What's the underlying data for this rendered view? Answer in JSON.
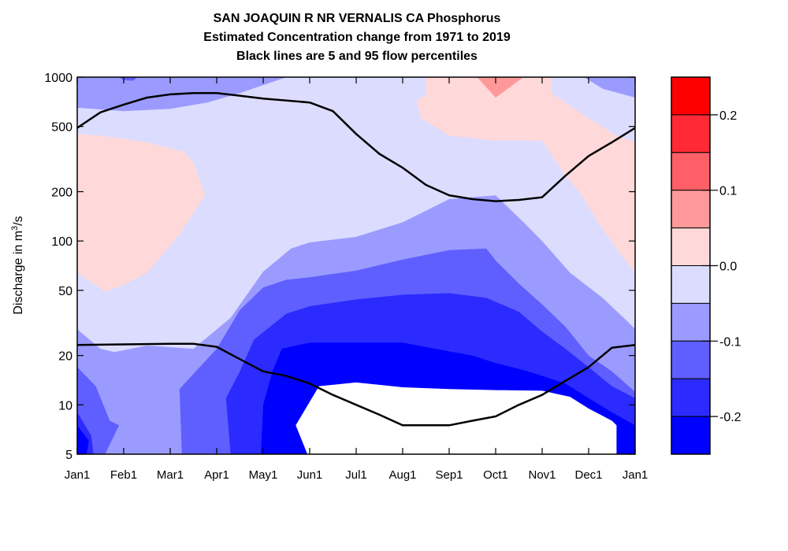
{
  "chart_data": {
    "type": "heatmap",
    "title_lines": [
      "SAN JOAQUIN R NR VERNALIS CA  Phosphorus",
      "Estimated Concentration change from 1971 to 2019",
      "Black lines are 5 and 95 flow percentiles"
    ],
    "ylabel": {
      "pre": "Discharge in m",
      "sup": "3",
      "post": "/s"
    },
    "yscale": "log",
    "ylim": [
      5,
      1000
    ],
    "ytick_values": [
      5,
      10,
      20,
      50,
      100,
      200,
      500,
      1000
    ],
    "yticks": [
      "5",
      "10",
      "20",
      "50",
      "100",
      "200",
      "500",
      "1000"
    ],
    "xtick_values": [
      0,
      1,
      2,
      3,
      4,
      5,
      6,
      7,
      8,
      9,
      10,
      11,
      12
    ],
    "xticks": [
      "Jan1",
      "Feb1",
      "Mar1",
      "Apr1",
      "May1",
      "Jun1",
      "Jul1",
      "Aug1",
      "Sep1",
      "Oct1",
      "Nov1",
      "Dec1",
      "Jan1"
    ],
    "xlim": [
      0,
      12
    ],
    "colorbar": {
      "range": [
        -0.25,
        0.25
      ],
      "tick_values": [
        0.2,
        0.1,
        0.0,
        -0.1,
        -0.2
      ],
      "tick_labels": [
        "0.2",
        "0.1",
        "0.0",
        "-0.1",
        "-0.2"
      ],
      "bands": [
        {
          "from": 0.2,
          "to": 0.25,
          "color": "#ff0000"
        },
        {
          "from": 0.15,
          "to": 0.2,
          "color": "#ff2a35"
        },
        {
          "from": 0.1,
          "to": 0.15,
          "color": "#ff5f66"
        },
        {
          "from": 0.05,
          "to": 0.1,
          "color": "#ff9999"
        },
        {
          "from": 0.0,
          "to": 0.05,
          "color": "#ffd9d9"
        },
        {
          "from": -0.05,
          "to": 0.0,
          "color": "#dcdcff"
        },
        {
          "from": -0.1,
          "to": -0.05,
          "color": "#9b9bff"
        },
        {
          "from": -0.15,
          "to": -0.1,
          "color": "#5f5fff"
        },
        {
          "from": -0.2,
          "to": -0.15,
          "color": "#2b2bff"
        },
        {
          "from": -0.25,
          "to": -0.2,
          "color": "#0000ff"
        }
      ]
    },
    "contour_regions": [
      {
        "level": -0.025,
        "color": "#dcdcff",
        "points": [
          [
            0,
            5
          ],
          [
            12,
            5
          ],
          [
            12,
            1000
          ],
          [
            0,
            1000
          ]
        ]
      },
      {
        "level": 0.025,
        "color": "#ffd9d9",
        "points": [
          [
            0,
            64
          ],
          [
            0.3,
            56
          ],
          [
            0.6,
            49
          ],
          [
            1,
            54
          ],
          [
            1.5,
            64
          ],
          [
            2.2,
            110
          ],
          [
            2.75,
            190
          ],
          [
            2.5,
            300
          ],
          [
            2.3,
            350
          ],
          [
            1.5,
            400
          ],
          [
            1,
            420
          ],
          [
            0.5,
            440
          ],
          [
            0,
            450
          ]
        ]
      },
      {
        "level": 0.025,
        "color": "#ffd9d9",
        "points": [
          [
            7.5,
            1000
          ],
          [
            7.5,
            780
          ],
          [
            7.3,
            720
          ],
          [
            7.4,
            560
          ],
          [
            8,
            440
          ],
          [
            9,
            410
          ],
          [
            10,
            410
          ],
          [
            10.5,
            250
          ],
          [
            10.8,
            200
          ],
          [
            11.2,
            130
          ],
          [
            11.6,
            90
          ],
          [
            12,
            64
          ],
          [
            12,
            400
          ],
          [
            11.6,
            440
          ],
          [
            11,
            560
          ],
          [
            10.5,
            700
          ],
          [
            10.2,
            800
          ],
          [
            10.2,
            1000
          ]
        ]
      },
      {
        "level": 0.075,
        "color": "#ff9999",
        "points": [
          [
            8.6,
            1000
          ],
          [
            9,
            750
          ],
          [
            9.6,
            1000
          ]
        ]
      },
      {
        "level": -0.075,
        "color": "#9b9bff",
        "points": [
          [
            0,
            29
          ],
          [
            0.5,
            22
          ],
          [
            0.8,
            21
          ],
          [
            1.5,
            23
          ],
          [
            2.5,
            22
          ],
          [
            3.3,
            34
          ],
          [
            4,
            65
          ],
          [
            4.6,
            90
          ],
          [
            5,
            98
          ],
          [
            6,
            106
          ],
          [
            7,
            130
          ],
          [
            8,
            180
          ],
          [
            9,
            190
          ],
          [
            9.6,
            130
          ],
          [
            10,
            100
          ],
          [
            10.6,
            64
          ],
          [
            11.3,
            45
          ],
          [
            11.8,
            33
          ],
          [
            12,
            29
          ],
          [
            12,
            5
          ],
          [
            0,
            5
          ]
        ]
      },
      {
        "level": -0.075,
        "color": "#9b9bff",
        "points": [
          [
            0,
            1000
          ],
          [
            0,
            650
          ],
          [
            1,
            620
          ],
          [
            2,
            640
          ],
          [
            2.8,
            700
          ],
          [
            3.5,
            800
          ],
          [
            4.5,
            1000
          ]
        ]
      },
      {
        "level": -0.075,
        "color": "#9b9bff",
        "points": [
          [
            10.9,
            1000
          ],
          [
            11.3,
            850
          ],
          [
            12,
            750
          ],
          [
            12,
            1000
          ]
        ]
      },
      {
        "level": -0.125,
        "color": "#5f5fff",
        "points": [
          [
            2.25,
            5
          ],
          [
            2.2,
            12.5
          ],
          [
            3,
            22
          ],
          [
            3.5,
            38
          ],
          [
            4,
            52
          ],
          [
            4.5,
            58
          ],
          [
            5,
            60
          ],
          [
            6,
            66
          ],
          [
            7,
            77
          ],
          [
            8,
            88
          ],
          [
            8.8,
            90
          ],
          [
            9,
            76
          ],
          [
            9.5,
            55
          ],
          [
            10,
            41
          ],
          [
            10.5,
            30
          ],
          [
            11,
            20
          ],
          [
            11.5,
            16
          ],
          [
            12,
            12
          ],
          [
            12,
            5
          ]
        ]
      },
      {
        "level": -0.125,
        "color": "#5f5fff",
        "points": [
          [
            0,
            17
          ],
          [
            0.4,
            13
          ],
          [
            0.7,
            8
          ],
          [
            0.9,
            7.5
          ],
          [
            0.6,
            5
          ],
          [
            0,
            5
          ]
        ]
      },
      {
        "level": -0.125,
        "color": "#5f5fff",
        "points": [
          [
            0.9,
            1000
          ],
          [
            1,
            960
          ],
          [
            1.2,
            950
          ],
          [
            1.3,
            1000
          ]
        ]
      },
      {
        "level": -0.175,
        "color": "#2b2bff",
        "points": [
          [
            3.3,
            5
          ],
          [
            3.2,
            11
          ],
          [
            3.5,
            16
          ],
          [
            3.8,
            25
          ],
          [
            4.5,
            36
          ],
          [
            5,
            40
          ],
          [
            6,
            44
          ],
          [
            7,
            47
          ],
          [
            8,
            48
          ],
          [
            8.8,
            45
          ],
          [
            9.5,
            37
          ],
          [
            10,
            28
          ],
          [
            10.5,
            22
          ],
          [
            11,
            17
          ],
          [
            11.5,
            13
          ],
          [
            12,
            11
          ],
          [
            12,
            5
          ]
        ]
      },
      {
        "level": -0.175,
        "color": "#2b2bff",
        "points": [
          [
            0,
            9
          ],
          [
            0.3,
            6.5
          ],
          [
            0.35,
            5
          ],
          [
            0,
            5
          ]
        ]
      },
      {
        "level": -0.225,
        "color": "#0000ff",
        "points": [
          [
            3.95,
            5
          ],
          [
            4,
            10
          ],
          [
            4.2,
            16
          ],
          [
            4.4,
            22
          ],
          [
            5,
            24
          ],
          [
            6,
            24
          ],
          [
            7,
            24
          ],
          [
            7.7,
            22
          ],
          [
            8.5,
            20
          ],
          [
            9,
            18
          ],
          [
            9.7,
            16
          ],
          [
            10.5,
            13.5
          ],
          [
            11,
            11
          ],
          [
            11.5,
            9
          ],
          [
            12,
            7.5
          ],
          [
            12,
            5
          ]
        ]
      },
      {
        "level": -0.225,
        "color": "#0000ff",
        "points": [
          [
            0,
            7.5
          ],
          [
            0.25,
            6
          ],
          [
            0.2,
            5
          ],
          [
            0,
            5
          ]
        ]
      },
      {
        "level": null,
        "color": "#ffffff",
        "points": [
          [
            4.95,
            5
          ],
          [
            4.7,
            7.5
          ],
          [
            5.2,
            13
          ],
          [
            6,
            13.7
          ],
          [
            7,
            12.8
          ],
          [
            8,
            12.5
          ],
          [
            9,
            12.3
          ],
          [
            10,
            12.2
          ],
          [
            10.6,
            11.2
          ],
          [
            11,
            9.5
          ],
          [
            11.5,
            8
          ],
          [
            11.6,
            7.5
          ],
          [
            11.6,
            5
          ]
        ]
      }
    ],
    "series": [
      {
        "points": [
          [
            0,
            490
          ],
          [
            0.5,
            610
          ],
          [
            1,
            680
          ],
          [
            1.5,
            750
          ],
          [
            2,
            785
          ],
          [
            2.5,
            800
          ],
          [
            3,
            800
          ],
          [
            3.5,
            770
          ],
          [
            4,
            740
          ],
          [
            5,
            700
          ],
          [
            5.5,
            620
          ],
          [
            6,
            450
          ],
          [
            6.5,
            340
          ],
          [
            7,
            280
          ],
          [
            7.5,
            220
          ],
          [
            8,
            190
          ],
          [
            8.5,
            180
          ],
          [
            9,
            175
          ],
          [
            9.5,
            178
          ],
          [
            10,
            185
          ],
          [
            10.5,
            250
          ],
          [
            11,
            330
          ],
          [
            11.5,
            400
          ],
          [
            12,
            490
          ]
        ]
      },
      {
        "points": [
          [
            0,
            23.2
          ],
          [
            0.5,
            23.3
          ],
          [
            1,
            23.4
          ],
          [
            1.5,
            23.5
          ],
          [
            2,
            23.6
          ],
          [
            2.5,
            23.6
          ],
          [
            3,
            22.6
          ],
          [
            3.5,
            19
          ],
          [
            4,
            16
          ],
          [
            4.5,
            15
          ],
          [
            5,
            13.5
          ],
          [
            5.5,
            11.5
          ],
          [
            6,
            10
          ],
          [
            6.5,
            8.7
          ],
          [
            7,
            7.5
          ],
          [
            7.5,
            7.5
          ],
          [
            8,
            7.5
          ],
          [
            8.5,
            8
          ],
          [
            9,
            8.5
          ],
          [
            9.5,
            10
          ],
          [
            10,
            11.5
          ],
          [
            10.5,
            14
          ],
          [
            11,
            17
          ],
          [
            11.5,
            22.3
          ],
          [
            12,
            23.2
          ]
        ]
      }
    ]
  }
}
